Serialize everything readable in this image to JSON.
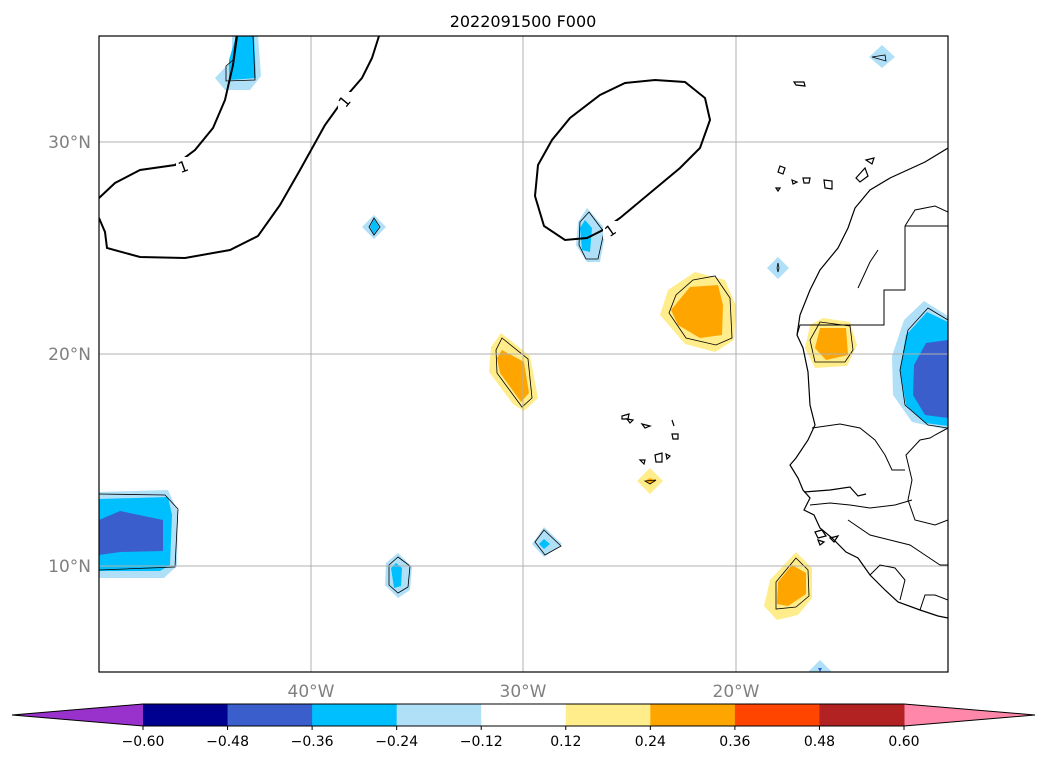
{
  "title": "2022091500 F000",
  "grid": {
    "lat_labels": [
      {
        "lat": 30,
        "text": "30°N"
      },
      {
        "lat": 20,
        "text": "20°N"
      },
      {
        "lat": 10,
        "text": "10°N"
      }
    ],
    "lon_labels": [
      {
        "lon": -40,
        "text": "40°W"
      },
      {
        "lon": -30,
        "text": "30°W"
      },
      {
        "lon": -20,
        "text": "20°W"
      }
    ]
  },
  "extent": {
    "lon_min": -50,
    "lon_max": -10,
    "lat_min": 5,
    "lat_max": 35
  },
  "contour_label": "1",
  "colorbar": {
    "extend": "both",
    "under_color": "#9932cc",
    "over_color": "#ff88aa",
    "colors": [
      "#000090",
      "#3a5fcd",
      "#00bfff",
      "#b0e0f8",
      "#ffffff",
      "#ffec8b",
      "#ffa500",
      "#ff4500",
      "#b22222"
    ],
    "ticks": [
      "−0.60",
      "−0.48",
      "−0.36",
      "−0.24",
      "−0.12",
      "0.12",
      "0.24",
      "0.36",
      "0.48",
      "0.60"
    ]
  },
  "chart_data": {
    "type": "heatmap",
    "title": "2022091500 F000",
    "x_range": [
      -50,
      -10
    ],
    "y_range": [
      5,
      35
    ],
    "levels": [
      -0.6,
      -0.48,
      -0.36,
      -0.24,
      -0.12,
      0.12,
      0.24,
      0.36,
      0.48,
      0.6
    ],
    "anomalies": [
      {
        "lon": -47.5,
        "lat": 11.5,
        "min": -0.42
      },
      {
        "lon": -44.0,
        "lat": 33.5,
        "min": -0.3
      },
      {
        "lon": -11.5,
        "lat": 19.0,
        "min": -0.45
      },
      {
        "lon": -37.0,
        "lat": 26.0,
        "min": -0.2
      },
      {
        "lon": -36.0,
        "lat": 9.5,
        "min": -0.28
      },
      {
        "lon": -29.0,
        "lat": 11.0,
        "min": -0.26
      },
      {
        "lon": -27.0,
        "lat": 25.5,
        "min": -0.27
      },
      {
        "lon": -18.0,
        "lat": 24.0,
        "min": -0.16
      },
      {
        "lon": -14.0,
        "lat": 34.0,
        "min": -0.14
      },
      {
        "lon": -30.5,
        "lat": 19.0,
        "max": 0.3
      },
      {
        "lon": -22.0,
        "lat": 21.5,
        "max": 0.33
      },
      {
        "lon": -15.0,
        "lat": 20.5,
        "max": 0.3
      },
      {
        "lon": -17.0,
        "lat": 8.5,
        "max": 0.3
      },
      {
        "lon": -24.0,
        "lat": 14.0,
        "max": 0.16
      }
    ]
  }
}
